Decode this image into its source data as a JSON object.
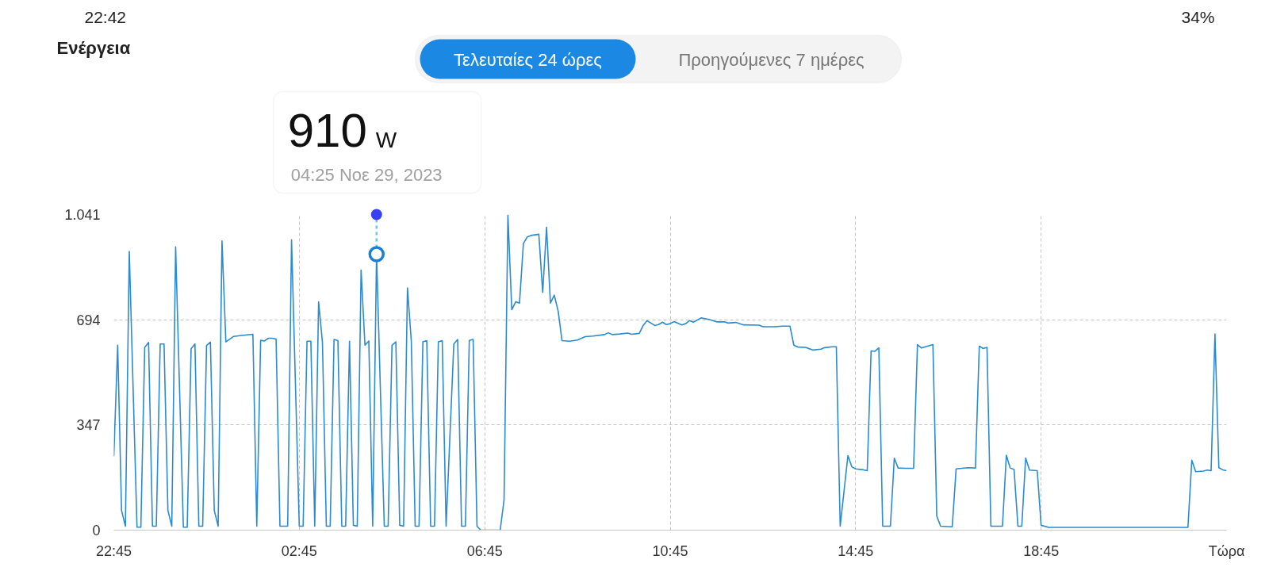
{
  "chart_data": {
    "type": "line",
    "title": "Ενέργεια",
    "x": [
      "2023-11-28T22:45",
      "2023-11-28T22:50",
      "2023-11-28T22:55",
      "2023-11-28T23:00",
      "2023-11-28T23:05",
      "2023-11-28T23:15",
      "2023-11-28T23:20",
      "2023-11-28T23:25",
      "2023-11-28T23:30",
      "2023-11-28T23:35",
      "2023-11-28T23:40",
      "2023-11-28T23:45",
      "2023-11-28T23:50",
      "2023-11-28T23:55",
      "2023-11-29T00:00",
      "2023-11-29T00:05",
      "2023-11-29T00:15",
      "2023-11-29T00:20",
      "2023-11-29T00:25",
      "2023-11-29T00:30",
      "2023-11-29T00:35",
      "2023-11-29T00:40",
      "2023-11-29T00:45",
      "2023-11-29T00:50",
      "2023-11-29T00:55",
      "2023-11-29T01:00",
      "2023-11-29T01:05",
      "2023-11-29T01:10",
      "2023-11-29T01:20",
      "2023-11-29T01:30",
      "2023-11-29T01:45",
      "2023-11-29T01:50",
      "2023-11-29T01:55",
      "2023-11-29T02:00",
      "2023-11-29T02:05",
      "2023-11-29T02:10",
      "2023-11-29T02:15",
      "2023-11-29T02:20",
      "2023-11-29T02:30",
      "2023-11-29T02:35",
      "2023-11-29T02:45",
      "2023-11-29T02:50",
      "2023-11-29T02:55",
      "2023-11-29T03:00",
      "2023-11-29T03:05",
      "2023-11-29T03:10",
      "2023-11-29T03:15",
      "2023-11-29T03:20",
      "2023-11-29T03:25",
      "2023-11-29T03:30",
      "2023-11-29T03:35",
      "2023-11-29T03:40",
      "2023-11-29T03:45",
      "2023-11-29T03:50",
      "2023-11-29T03:55",
      "2023-11-29T04:00",
      "2023-11-29T04:05",
      "2023-11-29T04:10",
      "2023-11-29T04:15",
      "2023-11-29T04:20",
      "2023-11-29T04:25",
      "2023-11-29T04:35",
      "2023-11-29T04:40",
      "2023-11-29T04:45",
      "2023-11-29T04:50",
      "2023-11-29T04:55",
      "2023-11-29T05:00",
      "2023-11-29T05:05",
      "2023-11-29T05:10",
      "2023-11-29T05:15",
      "2023-11-29T05:20",
      "2023-11-29T05:25",
      "2023-11-29T05:30",
      "2023-11-29T05:35",
      "2023-11-29T05:40",
      "2023-11-29T05:45",
      "2023-11-29T05:50",
      "2023-11-29T05:55",
      "2023-11-29T06:05",
      "2023-11-29T06:10",
      "2023-11-29T06:15",
      "2023-11-29T06:20",
      "2023-11-29T06:25",
      "2023-11-29T06:30",
      "2023-11-29T06:35",
      "2023-11-29T06:40",
      "2023-11-29T07:05",
      "2023-11-29T07:10",
      "2023-11-29T07:15",
      "2023-11-29T07:20",
      "2023-11-29T07:25",
      "2023-11-29T07:30",
      "2023-11-29T07:35",
      "2023-11-29T07:40",
      "2023-11-29T07:45",
      "2023-11-29T07:55",
      "2023-11-29T08:00",
      "2023-11-29T08:05",
      "2023-11-29T08:10",
      "2023-11-29T08:15",
      "2023-11-29T08:20",
      "2023-11-29T08:25",
      "2023-11-29T08:35",
      "2023-11-29T08:45",
      "2023-11-29T08:55",
      "2023-11-29T09:05",
      "2023-11-29T09:20",
      "2023-11-29T09:25",
      "2023-11-29T09:30",
      "2023-11-29T09:40",
      "2023-11-29T09:50",
      "2023-11-29T09:55",
      "2023-11-29T10:05",
      "2023-11-29T10:10",
      "2023-11-29T10:15",
      "2023-11-29T10:25",
      "2023-11-29T10:30",
      "2023-11-29T10:35",
      "2023-11-29T10:40",
      "2023-11-29T10:45",
      "2023-11-29T10:50",
      "2023-11-29T11:00",
      "2023-11-29T11:05",
      "2023-11-29T11:10",
      "2023-11-29T11:15",
      "2023-11-29T11:25",
      "2023-11-29T11:35",
      "2023-11-29T11:45",
      "2023-11-29T11:55",
      "2023-11-29T12:00",
      "2023-11-29T12:10",
      "2023-11-29T12:20",
      "2023-11-29T12:40",
      "2023-11-29T12:45",
      "2023-11-29T13:00",
      "2023-11-29T13:10",
      "2023-11-29T13:20",
      "2023-11-29T13:25",
      "2023-11-29T13:30",
      "2023-11-29T13:40",
      "2023-11-29T13:50",
      "2023-11-29T14:00",
      "2023-11-29T14:05",
      "2023-11-29T14:15",
      "2023-11-29T14:20",
      "2023-11-29T14:25",
      "2023-11-29T14:35",
      "2023-11-29T14:40",
      "2023-11-29T14:45",
      "2023-11-29T14:55",
      "2023-11-29T15:00",
      "2023-11-29T15:05",
      "2023-11-29T15:10",
      "2023-11-29T15:15",
      "2023-11-29T15:20",
      "2023-11-29T15:30",
      "2023-11-29T15:35",
      "2023-11-29T15:40",
      "2023-11-29T15:50",
      "2023-11-29T16:00",
      "2023-11-29T16:05",
      "2023-11-29T16:10",
      "2023-11-29T16:25",
      "2023-11-29T16:30",
      "2023-11-29T16:35",
      "2023-11-29T16:50",
      "2023-11-29T16:55",
      "2023-11-29T17:10",
      "2023-11-29T17:20",
      "2023-11-29T17:25",
      "2023-11-29T17:30",
      "2023-11-29T17:35",
      "2023-11-29T17:40",
      "2023-11-29T17:55",
      "2023-11-29T18:00",
      "2023-11-29T18:05",
      "2023-11-29T18:10",
      "2023-11-29T18:15",
      "2023-11-29T18:20",
      "2023-11-29T18:25",
      "2023-11-29T18:30",
      "2023-11-29T18:40",
      "2023-11-29T18:45",
      "2023-11-29T18:55",
      "2023-11-29T21:55",
      "2023-11-29T22:00",
      "2023-11-29T22:05",
      "2023-11-29T22:15",
      "2023-11-29T22:20",
      "2023-11-29T22:25",
      "2023-11-29T22:30",
      "2023-11-29T22:35",
      "2023-11-29T22:40",
      "2023-11-29T22:45"
    ],
    "series": [
      {
        "color": "#2a8bd0",
        "values": [
          244,
          610,
          65,
          13,
          919,
          10,
          10,
          603,
          619,
          13,
          13,
          614,
          614,
          65,
          13,
          934,
          10,
          10,
          598,
          614,
          13,
          13,
          609,
          620,
          65,
          13,
          954,
          621,
          639,
          642,
          646,
          13,
          626,
          624,
          633,
          633,
          630,
          13,
          13,
          958,
          13,
          13,
          623,
          623,
          13,
          753,
          619,
          13,
          13,
          629,
          625,
          13,
          13,
          623,
          16,
          13,
          858,
          610,
          624,
          13,
          910,
          13,
          13,
          610,
          621,
          16,
          13,
          799,
          623,
          13,
          13,
          621,
          625,
          13,
          13,
          621,
          625,
          13,
          614,
          629,
          13,
          13,
          626,
          629,
          13,
          0,
          0,
          100,
          1039,
          727,
          753,
          749,
          945,
          967,
          972,
          976,
          784,
          999,
          749,
          775,
          723,
          625,
          623,
          627,
          638,
          640,
          645,
          651,
          645,
          647,
          650,
          646,
          649,
          675,
          691,
          675,
          678,
          686,
          678,
          681,
          688,
          677,
          681,
          691,
          686,
          700,
          695,
          687,
          687,
          683,
          685,
          677,
          676,
          671,
          671,
          673,
          673,
          610,
          604,
          603,
          594,
          597,
          602,
          605,
          605,
          13,
          246,
          209,
          202,
          199,
          196,
          591,
          590,
          601,
          13,
          13,
          237,
          205,
          204,
          204,
          612,
          601,
          612,
          46,
          13,
          11,
          202,
          206,
          205,
          607,
          599,
          603,
          13,
          13,
          247,
          205,
          200,
          13,
          13,
          238,
          198,
          196,
          16,
          9,
          9,
          231,
          193,
          195,
          198,
          196,
          647,
          206,
          199,
          196
        ]
      }
    ],
    "xlim": [
      "2023-11-28T22:45",
      "2023-11-29T22:45"
    ],
    "ylim": [
      0,
      1041
    ],
    "xticks": [
      {
        "value": "2023-11-28T22:45",
        "label": "22:45"
      },
      {
        "value": "2023-11-29T02:45",
        "label": "02:45"
      },
      {
        "value": "2023-11-29T06:45",
        "label": "06:45"
      },
      {
        "value": "2023-11-29T10:45",
        "label": "10:45"
      },
      {
        "value": "2023-11-29T14:45",
        "label": "14:45"
      },
      {
        "value": "2023-11-29T18:45",
        "label": "18:45"
      },
      {
        "value": "2023-11-29T22:45",
        "label": "Τώρα"
      }
    ],
    "yticks": [
      0,
      347,
      694,
      {
        "value": 1041,
        "label": "1.041"
      }
    ],
    "grid": true,
    "annotations": [
      "22:42",
      "34%",
      "Τελευταίες 24 ώρες",
      "Προηγούμενες 7 ημέρες",
      {
        "text": "910 W",
        "x": "2023-11-29T04:25",
        "y": 910
      },
      "04:25 Νοε 29, 2023"
    ]
  }
}
